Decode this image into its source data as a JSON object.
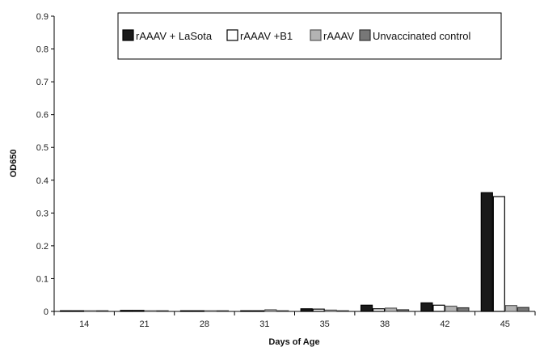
{
  "chart_data": {
    "type": "bar",
    "xlabel": "Days of Age",
    "ylabel": "OD650",
    "ylim": [
      0,
      0.9
    ],
    "yticks": [
      "0",
      "0.1",
      "0.2",
      "0.3",
      "0.4",
      "0.5",
      "0.6",
      "0.7",
      "0.8",
      "0.9"
    ],
    "categories": [
      "14",
      "21",
      "28",
      "31",
      "35",
      "38",
      "42",
      "45"
    ],
    "legend_position": "top-right",
    "grid": false,
    "series": [
      {
        "name": "rAAAV + LaSota",
        "color": "#1a1a1a",
        "stroke": "#000000",
        "values": [
          0.002,
          0.003,
          0.0,
          0.0,
          0.008,
          0.019,
          0.026,
          0.362
        ]
      },
      {
        "name": "rAAAV +B1",
        "color": "#ffffff",
        "stroke": "#000000",
        "values": [
          0.0,
          0.003,
          0.0,
          0.0,
          0.007,
          0.008,
          0.019,
          0.35
        ]
      },
      {
        "name": "rAAAV",
        "color": "#b3b3b3",
        "stroke": "#555555",
        "values": [
          0.0,
          0.0,
          0.0,
          0.005,
          0.004,
          0.01,
          0.016,
          0.018
        ]
      },
      {
        "name": "Unvaccinated control",
        "color": "#777777",
        "stroke": "#333333",
        "values": [
          0.002,
          0.0,
          0.0,
          0.002,
          0.002,
          0.005,
          0.011,
          0.012
        ]
      }
    ]
  }
}
